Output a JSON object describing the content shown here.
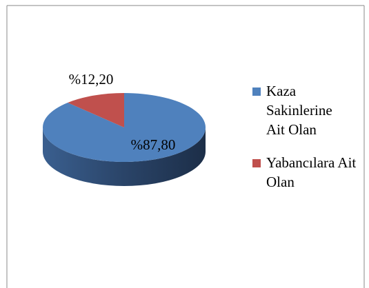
{
  "chart_data": {
    "type": "pie",
    "categories": [
      "Kaza Sakinlerine Ait Olan",
      "Yabancılara Ait Olan"
    ],
    "values": [
      87.8,
      12.2
    ],
    "value_labels": [
      "%87,80",
      "%12,20"
    ],
    "colors": [
      "#4f81bd",
      "#c0504d"
    ],
    "side_colors": [
      "#2f4f7a",
      "#7a2f2d"
    ],
    "legend": "right"
  }
}
